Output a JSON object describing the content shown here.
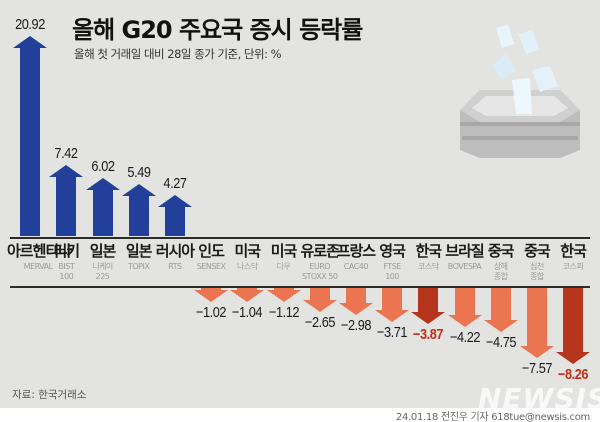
{
  "header": {
    "title": "올해 G20 주요국 증시 등락률",
    "subtitle": "올해 첫 거래일 대비 28일 종가 기준, 단위: %"
  },
  "footer": {
    "source": "자료: 한국거래소",
    "credit": "24.01.18 전진우 기자 618tue@newsis.com",
    "watermark": "NEWSIS"
  },
  "colors": {
    "positive": "#22409a",
    "negative": "#ea7550",
    "highlight": "#b5361c",
    "background": "#e3e3e1"
  },
  "chart_data": {
    "type": "bar",
    "title": "올해 G20 주요국 증시 등락률",
    "subtitle": "올해 첫 거래일 대비 28일 종가 기준, 단위: %",
    "categories": [
      "아르헨티나",
      "터키",
      "일본",
      "일본",
      "러시아",
      "인도",
      "미국",
      "미국",
      "유로존",
      "프랑스",
      "영국",
      "한국",
      "브라질",
      "중국",
      "중국",
      "한국"
    ],
    "indices": [
      "MERVAL",
      "BIST\n100",
      "니케이\n225",
      "TOPIX",
      "RTS",
      "SENSEX",
      "나스닥",
      "다우",
      "EURO\nSTOXX 50",
      "CAC40",
      "FTSE\n100",
      "코스닥",
      "BOVESPA",
      "상해\n종합",
      "심천\n종합",
      "코스피"
    ],
    "values": [
      20.92,
      7.42,
      6.02,
      5.49,
      4.27,
      -1.02,
      -1.04,
      -1.12,
      -2.65,
      -2.98,
      -3.71,
      -3.87,
      -4.22,
      -4.75,
      -7.57,
      -8.26
    ],
    "labels": [
      "20.92",
      "7.42",
      "6.02",
      "5.49",
      "4.27",
      "−1.02",
      "−1.04",
      "−1.12",
      "−2.65",
      "−2.98",
      "−3.71",
      "−3.87",
      "−4.22",
      "−4.75",
      "−7.57",
      "−8.26"
    ],
    "highlighted": [
      false,
      false,
      false,
      false,
      false,
      false,
      false,
      false,
      false,
      false,
      false,
      true,
      false,
      false,
      false,
      true
    ],
    "xlabel": "",
    "ylabel": "%",
    "grid": false,
    "legend": "none"
  }
}
